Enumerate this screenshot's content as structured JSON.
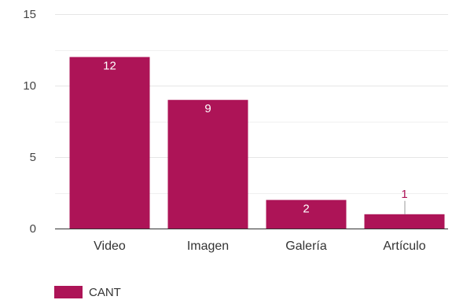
{
  "chart_data": {
    "type": "bar",
    "title": "",
    "xlabel": "",
    "ylabel": "",
    "categories": [
      "Video",
      "Imagen",
      "Galería",
      "Artículo"
    ],
    "series": [
      {
        "name": "CANT",
        "values": [
          12,
          9,
          2,
          1
        ]
      }
    ],
    "ylim": [
      0,
      15
    ],
    "yticks": [
      0,
      5,
      10,
      15
    ],
    "grid": true,
    "legend": "bottom-left",
    "data_labels": [
      "12",
      "9",
      "2",
      "1"
    ],
    "colors": {
      "bar": "#ad1457",
      "gridline": "#e6e6e6",
      "axis": "#333333",
      "label_inside": "#ffffff",
      "label_outside": "#ad1457",
      "leader": "#999999"
    }
  }
}
